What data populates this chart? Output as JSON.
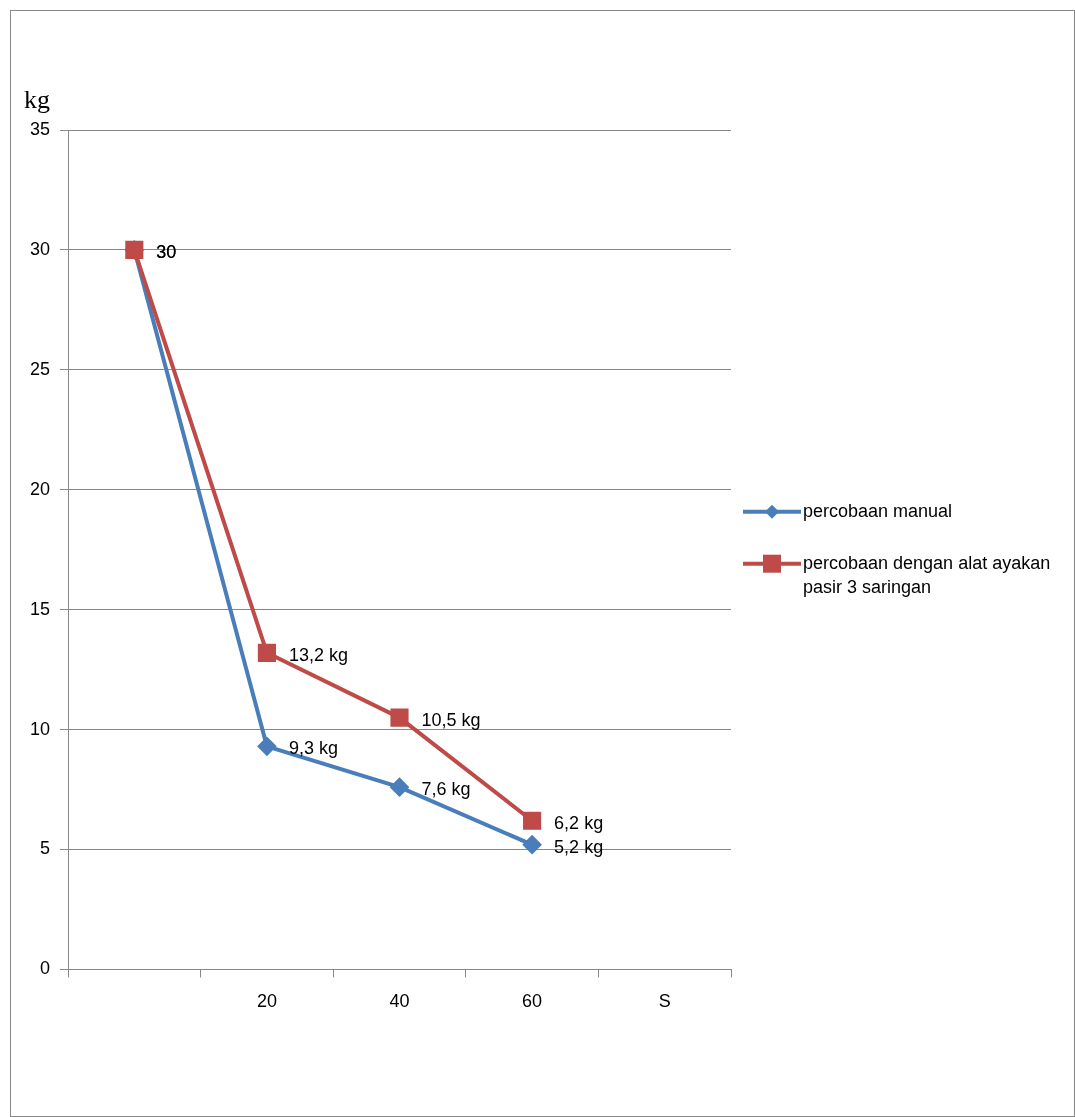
{
  "chart_data": {
    "type": "line",
    "ylabel": "kg",
    "categories": [
      null,
      "20",
      "40",
      "60",
      "S"
    ],
    "series": [
      {
        "name": "percobaan manual",
        "color": "#4a7ebb",
        "marker": "diamond",
        "values": [
          30,
          9.3,
          7.6,
          5.2,
          null
        ],
        "value_labels": [
          "30",
          "9,3 kg",
          "7,6 kg",
          "5,2 kg",
          null
        ]
      },
      {
        "name": "percobaan dengan alat ayakan pasir 3 saringan",
        "color": "#be4b48",
        "marker": "square",
        "values": [
          30,
          13.2,
          10.5,
          6.2,
          null
        ],
        "value_labels": [
          "30",
          "13,2 kg",
          "10,5 kg",
          "6,2 kg",
          null
        ]
      }
    ],
    "ylim": [
      0,
      35
    ],
    "yticks": [
      0,
      5,
      10,
      15,
      20,
      25,
      30,
      35
    ],
    "grid": "y",
    "legend": "right"
  }
}
